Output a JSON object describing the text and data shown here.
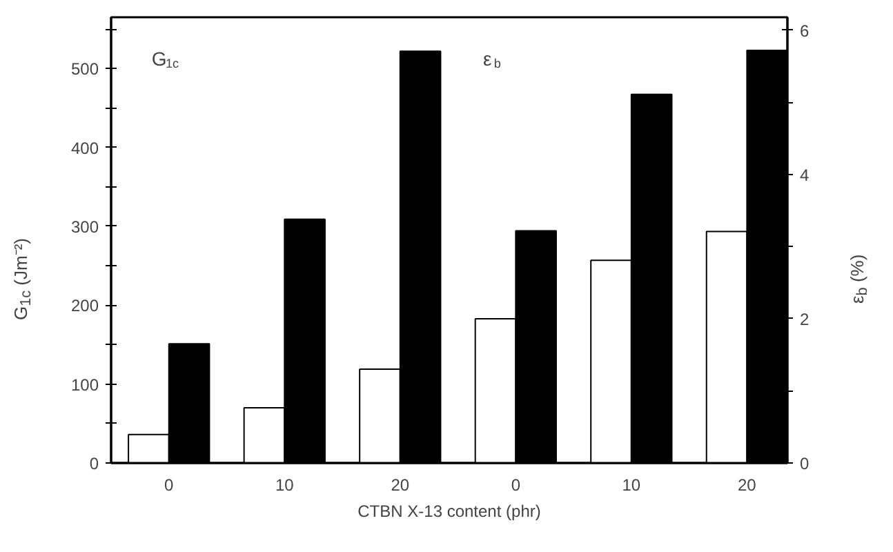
{
  "chart_data": {
    "type": "bar",
    "xlabel": "CTBN X-13 content (phr)",
    "ylabel": "G$_{1c}$ (Jm⁻²)",
    "y2label": "ε$_{b}$ (%)",
    "categories": [
      "0",
      "10",
      "20",
      "0",
      "10",
      "20"
    ],
    "series": [
      {
        "color": "#ffffff",
        "values": [
          36,
          70,
          119,
          null,
          null,
          null
        ]
      },
      {
        "color": "#000000",
        "values": [
          151,
          309,
          522,
          null,
          null,
          null
        ]
      },
      {
        "color": "#ffffff",
        "axis": "y2",
        "values": [
          null,
          null,
          null,
          2.0,
          2.81,
          3.21
        ]
      },
      {
        "color": "#000000",
        "axis": "y2",
        "values": [
          null,
          null,
          null,
          3.22,
          5.11,
          5.72
        ]
      }
    ],
    "ylim": [
      0,
      565
    ],
    "yticks": [
      0,
      {
        "value": 50,
        "label": null
      },
      100,
      {
        "value": 150,
        "label": null
      },
      200,
      {
        "value": 250,
        "label": null
      },
      300,
      {
        "value": 350,
        "label": null
      },
      400,
      {
        "value": 450,
        "label": null
      },
      500,
      {
        "value": 550,
        "label": null
      }
    ],
    "y2lim": [
      0,
      6.18
    ],
    "y2ticks": [
      0,
      {
        "value": 1,
        "label": null
      },
      2,
      {
        "value": 3,
        "label": null
      },
      4,
      {
        "value": 5,
        "label": null
      },
      6
    ],
    "annotations": [
      "G$_{1c}$",
      "ε$_{b}$"
    ],
    "grid": false,
    "legend": false
  }
}
